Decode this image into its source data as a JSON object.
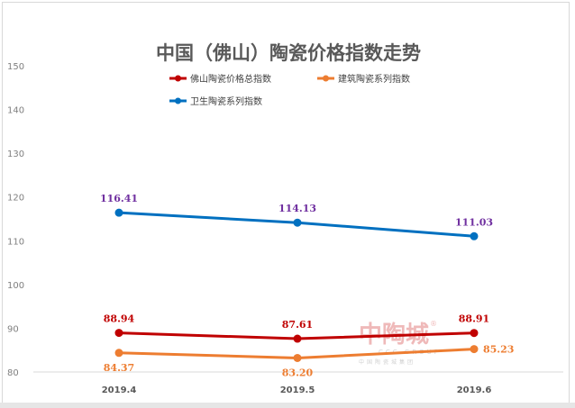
{
  "chart_data": {
    "type": "line",
    "title": "中国（佛山）陶瓷价格指数走势",
    "categories": [
      "2019.4",
      "2019.5",
      "2019.6"
    ],
    "ylim": [
      80,
      150
    ],
    "yticks": [
      80,
      90,
      100,
      110,
      120,
      130,
      140,
      150
    ],
    "grid": false,
    "legend_position": "top",
    "series": [
      {
        "name": "佛山陶瓷价格总指数",
        "values": [
          88.94,
          87.61,
          88.91
        ],
        "labels": [
          "88.94",
          "87.61",
          "88.91"
        ],
        "color": "#c00000"
      },
      {
        "name": "建筑陶瓷系列指数",
        "values": [
          84.37,
          83.2,
          85.23
        ],
        "labels": [
          "84.37",
          "83.20",
          "85.23"
        ],
        "color": "#ed7d31"
      },
      {
        "name": "卫生陶瓷系列指数",
        "values": [
          116.41,
          114.13,
          111.03
        ],
        "labels": [
          "116.41",
          "114.13",
          "111.03"
        ],
        "color": "#0070c0"
      }
    ]
  },
  "watermark": {
    "logo": "中陶城",
    "en": "CCC GROUP",
    "sub": "中国陶瓷城集团"
  },
  "label_colors": {
    "series0": "#c00000",
    "series1": "#ed7d31",
    "series2": "#7030a0"
  }
}
